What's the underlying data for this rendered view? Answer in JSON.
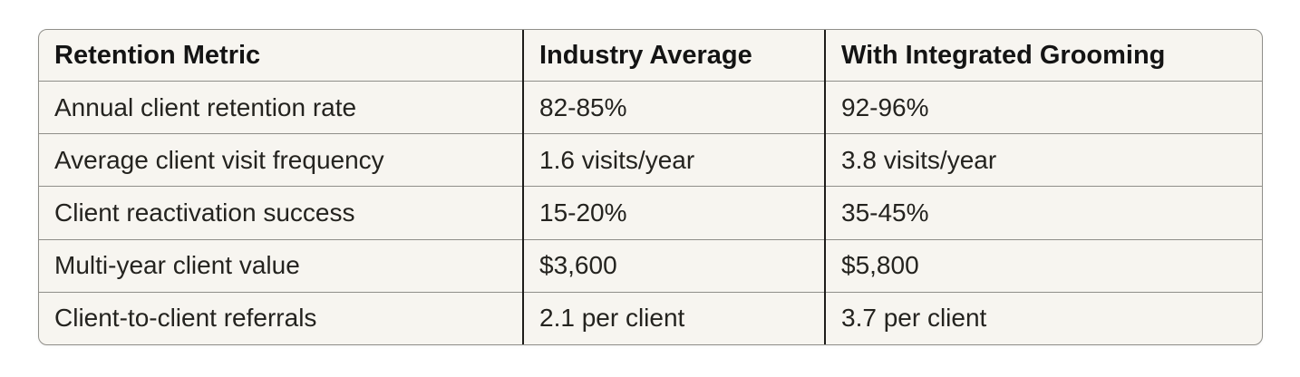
{
  "colors": {
    "page_bg": "#ffffff",
    "table_bg": "#f7f5f0",
    "outer_border": "#908f8a",
    "row_divider": "#8f8e89",
    "column_divider": "#1e1d1a",
    "header_text": "#141414",
    "body_text": "#24231f"
  },
  "table": {
    "columns": [
      "Retention Metric",
      "Industry Average",
      "With Integrated Grooming"
    ],
    "rows": [
      [
        "Annual client retention rate",
        "82-85%",
        "92-96%"
      ],
      [
        "Average client visit frequency",
        "1.6 visits/year",
        "3.8 visits/year"
      ],
      [
        "Client reactivation success",
        "15-20%",
        "35-45%"
      ],
      [
        "Multi-year client value",
        "$3,600",
        "$5,800"
      ],
      [
        "Client-to-client referrals",
        "2.1 per client",
        "3.7 per client"
      ]
    ]
  }
}
